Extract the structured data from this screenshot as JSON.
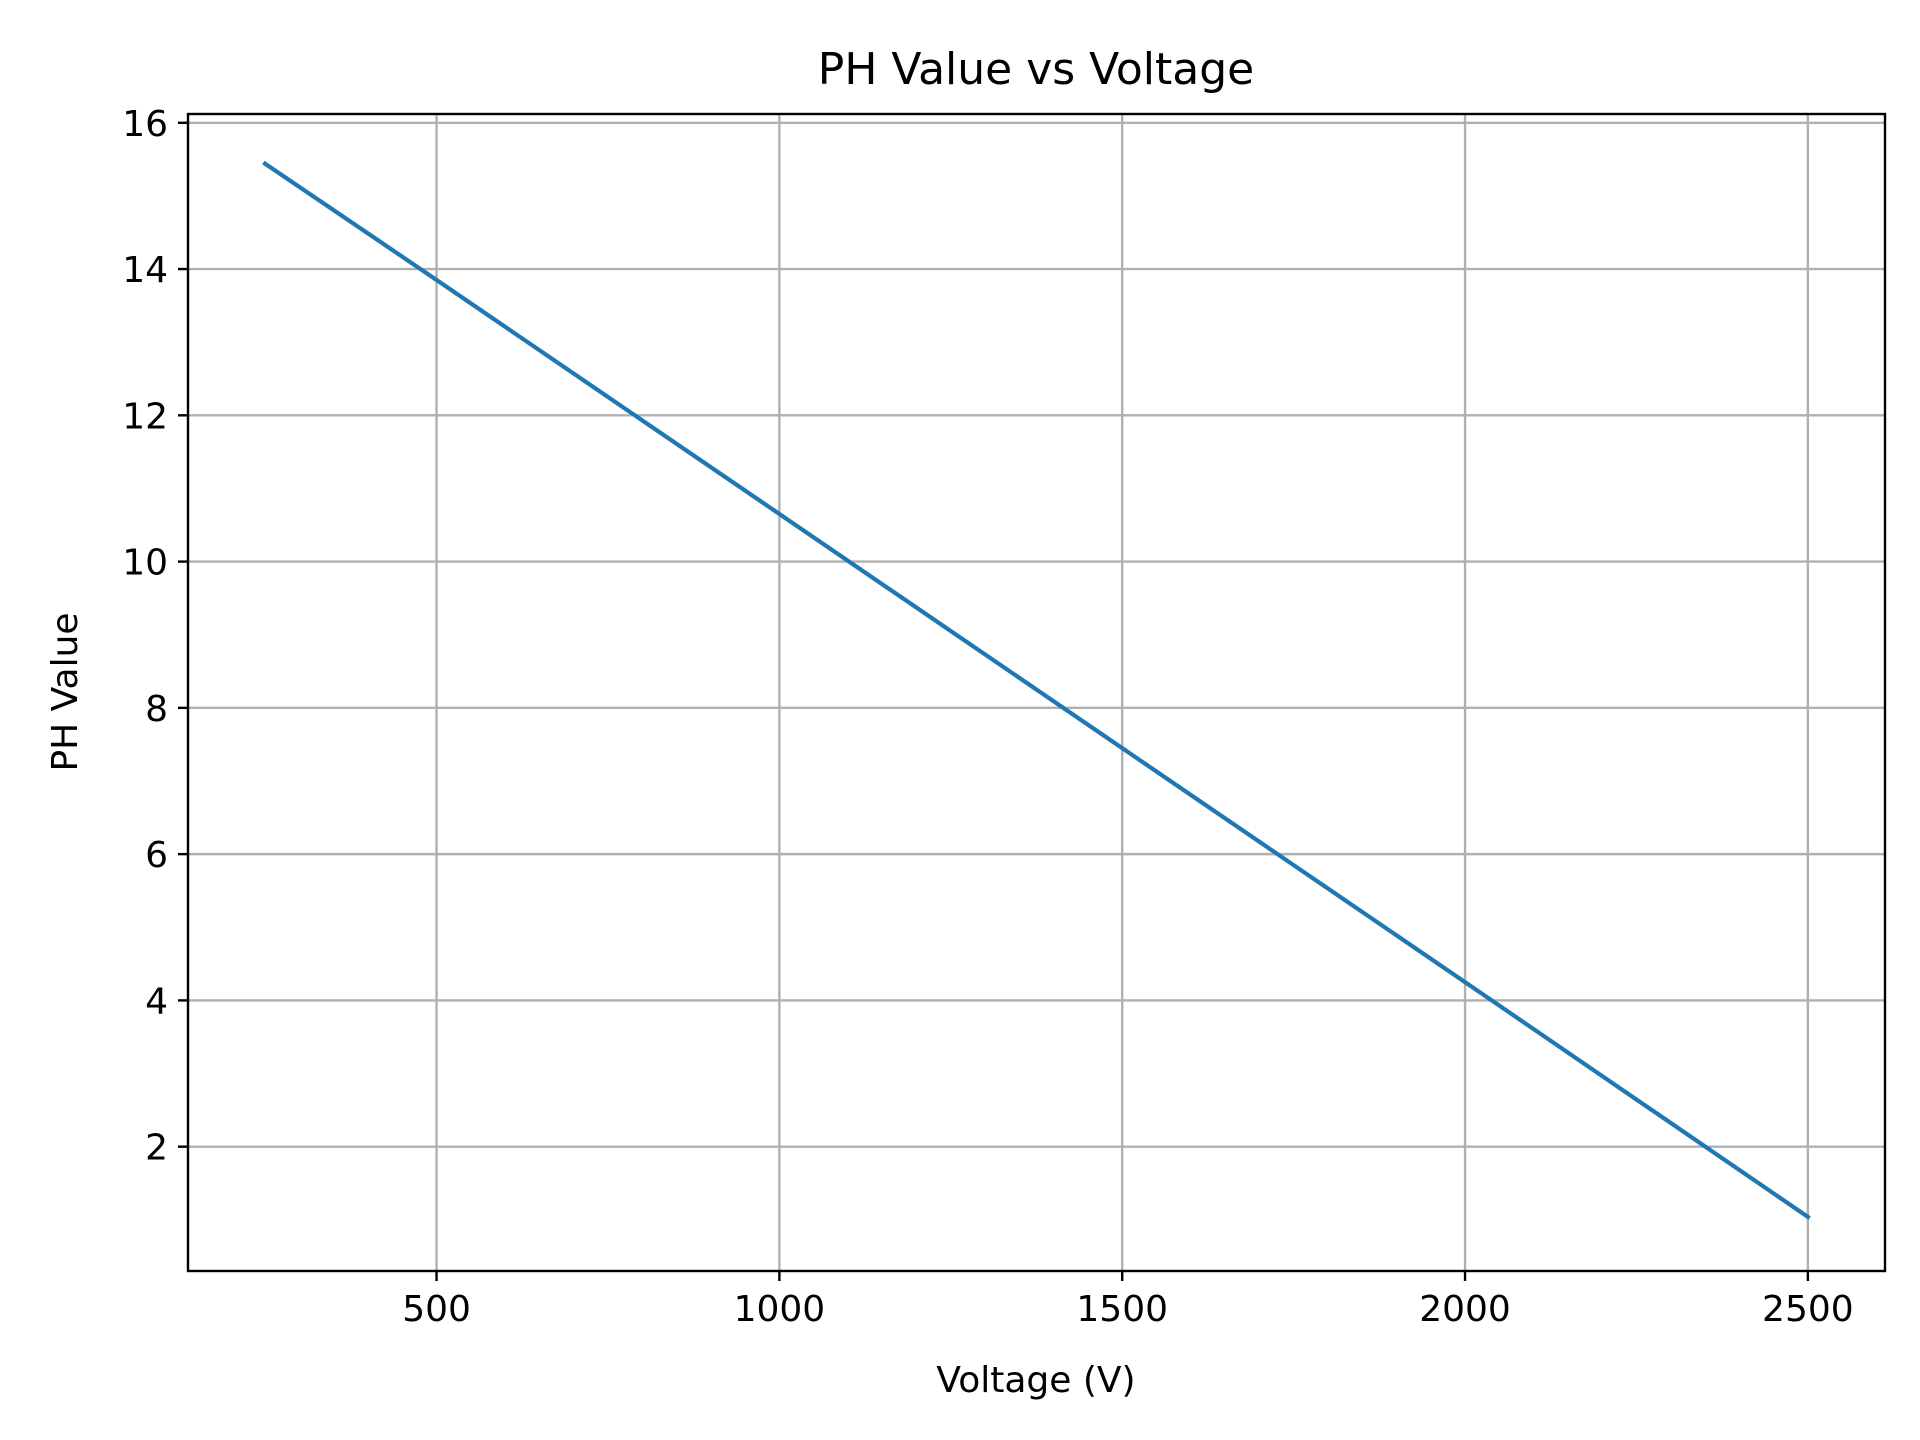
{
  "chart_data": {
    "type": "line",
    "title": "PH Value vs Voltage",
    "xlabel": "Voltage (V)",
    "ylabel": "PH Value",
    "xlim": [
      137.5,
      2612.5
    ],
    "ylim": [
      0.3,
      16.12
    ],
    "xticks": [
      500,
      1000,
      1500,
      2000,
      2500
    ],
    "xtick_labels": [
      "500",
      "1000",
      "1500",
      "2000",
      "2500"
    ],
    "yticks": [
      2,
      4,
      6,
      8,
      10,
      12,
      14,
      16
    ],
    "ytick_labels": [
      "2",
      "4",
      "6",
      "8",
      "10",
      "12",
      "14",
      "16"
    ],
    "grid": true,
    "series": [
      {
        "color": "#1f77b4",
        "x": [
          250,
          500,
          1000,
          1500,
          2000,
          2500
        ],
        "y": [
          15.44,
          13.85,
          10.65,
          7.45,
          4.25,
          1.04
        ]
      }
    ]
  }
}
